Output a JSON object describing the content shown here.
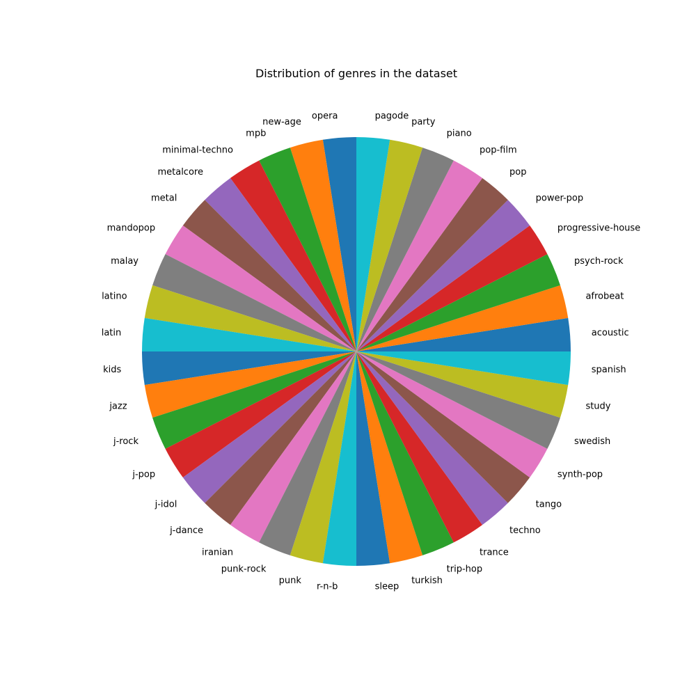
{
  "chart_data": {
    "type": "pie",
    "title": "Distribution of genres in the dataset",
    "start_angle_deg": 0,
    "direction": "counterclockwise",
    "colors": [
      "#1f77b4",
      "#ff7f0e",
      "#2ca02c",
      "#d62728",
      "#9467bd",
      "#8c564b",
      "#e377c2",
      "#7f7f7f",
      "#bcbd22",
      "#17becf"
    ],
    "categories": [
      "acoustic",
      "afrobeat",
      "psych-rock",
      "progressive-house",
      "power-pop",
      "pop",
      "pop-film",
      "piano",
      "party",
      "pagode",
      "opera",
      "new-age",
      "mpb",
      "minimal-techno",
      "metalcore",
      "metal",
      "mandopop",
      "malay",
      "latino",
      "latin",
      "kids",
      "jazz",
      "j-rock",
      "j-pop",
      "j-idol",
      "j-dance",
      "iranian",
      "punk-rock",
      "punk",
      "r-n-b",
      "sleep",
      "turkish",
      "trip-hop",
      "trance",
      "techno",
      "tango",
      "synth-pop",
      "swedish",
      "study",
      "spanish"
    ],
    "values": [
      1000,
      1000,
      1000,
      1000,
      1000,
      1000,
      1000,
      1000,
      1000,
      1000,
      1000,
      1000,
      1000,
      1000,
      1000,
      1000,
      1000,
      1000,
      1000,
      1000,
      1000,
      1000,
      1000,
      1000,
      1000,
      1000,
      1000,
      1000,
      1000,
      1000,
      1000,
      1000,
      1000,
      1000,
      1000,
      1000,
      1000,
      1000,
      1000,
      1000
    ]
  }
}
